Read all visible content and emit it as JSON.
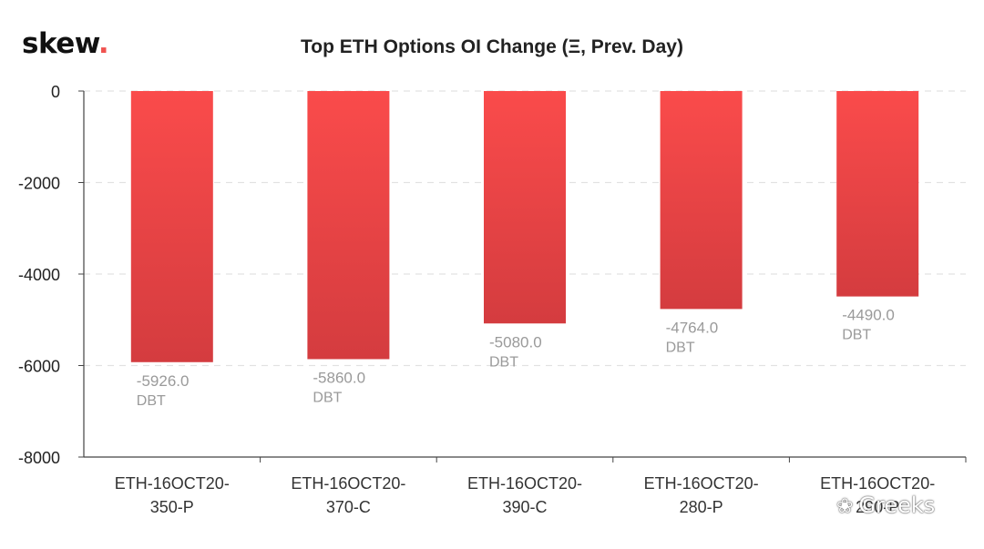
{
  "brand": {
    "name": "skew",
    "dot": "."
  },
  "watermark": {
    "icon": "wechat-icon",
    "text": "Greeks"
  },
  "chart_data": {
    "type": "bar",
    "title": "Top ETH Options OI Change (Ξ, Prev. Day)",
    "xlabel": "",
    "ylabel": "",
    "categories": [
      [
        "ETH-16OCT20-",
        "350-P"
      ],
      [
        "ETH-16OCT20-",
        "370-C"
      ],
      [
        "ETH-16OCT20-",
        "390-C"
      ],
      [
        "ETH-16OCT20-",
        "280-P"
      ],
      [
        "ETH-16OCT20-",
        "290-P"
      ]
    ],
    "values": [
      -5926.0,
      -5860.0,
      -5080.0,
      -4764.0,
      -4490.0
    ],
    "data_labels": [
      [
        "-5926.0",
        "DBT"
      ],
      [
        "-5860.0",
        "DBT"
      ],
      [
        "-5080.0",
        "DBT"
      ],
      [
        "-4764.0",
        "DBT"
      ],
      [
        "-4490.0",
        "DBT"
      ]
    ],
    "ylim": [
      -8000,
      0
    ],
    "yticks": [
      0,
      -2000,
      -4000,
      -6000,
      -8000
    ],
    "grid": true,
    "bar_color_top": "#fa4b4b",
    "bar_color_bottom": "#d43c3f"
  }
}
